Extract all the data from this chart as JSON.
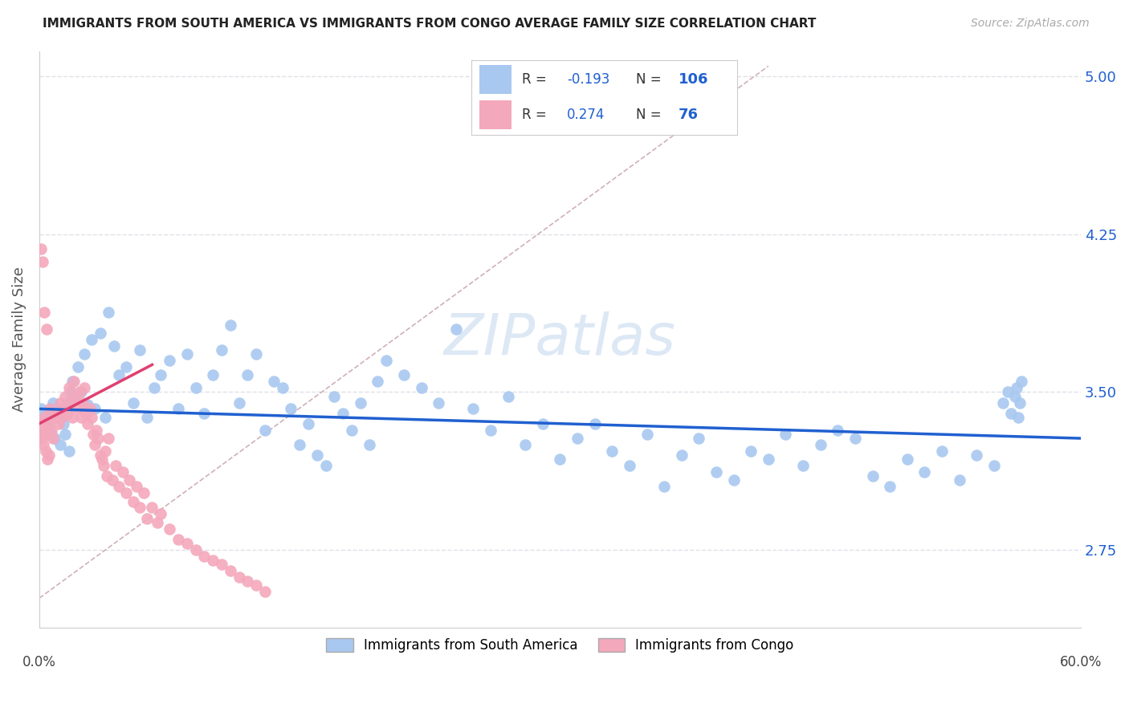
{
  "title": "IMMIGRANTS FROM SOUTH AMERICA VS IMMIGRANTS FROM CONGO AVERAGE FAMILY SIZE CORRELATION CHART",
  "source": "Source: ZipAtlas.com",
  "ylabel": "Average Family Size",
  "yticks": [
    2.75,
    3.5,
    4.25,
    5.0
  ],
  "xlim": [
    0.0,
    0.6
  ],
  "ylim": [
    2.38,
    5.12
  ],
  "legend1_label": "Immigrants from South America",
  "legend2_label": "Immigrants from Congo",
  "R1": "-0.193",
  "N1": "106",
  "R2": "0.274",
  "N2": "76",
  "color_sa": "#a8c8f0",
  "color_congo": "#f4a8bc",
  "trendline_sa": "#2060d0",
  "trendline_congo": "#e04070",
  "diag_color": "#d0b0b8",
  "grid_color": "#e0e0e8",
  "sa_x": [
    0.001,
    0.002,
    0.003,
    0.004,
    0.005,
    0.006,
    0.007,
    0.008,
    0.009,
    0.01,
    0.011,
    0.012,
    0.013,
    0.014,
    0.015,
    0.016,
    0.017,
    0.018,
    0.019,
    0.02,
    0.022,
    0.024,
    0.026,
    0.028,
    0.03,
    0.032,
    0.035,
    0.038,
    0.04,
    0.043,
    0.046,
    0.05,
    0.054,
    0.058,
    0.062,
    0.066,
    0.07,
    0.075,
    0.08,
    0.085,
    0.09,
    0.095,
    0.1,
    0.105,
    0.11,
    0.115,
    0.12,
    0.125,
    0.13,
    0.135,
    0.14,
    0.145,
    0.15,
    0.155,
    0.16,
    0.165,
    0.17,
    0.175,
    0.18,
    0.185,
    0.19,
    0.195,
    0.2,
    0.21,
    0.22,
    0.23,
    0.24,
    0.25,
    0.26,
    0.27,
    0.28,
    0.29,
    0.3,
    0.31,
    0.32,
    0.33,
    0.34,
    0.35,
    0.36,
    0.37,
    0.38,
    0.39,
    0.4,
    0.41,
    0.42,
    0.43,
    0.44,
    0.45,
    0.46,
    0.47,
    0.48,
    0.49,
    0.5,
    0.51,
    0.52,
    0.53,
    0.54,
    0.55,
    0.555,
    0.558,
    0.56,
    0.562,
    0.563,
    0.564,
    0.565,
    0.566
  ],
  "sa_y": [
    3.42,
    3.38,
    3.35,
    3.4,
    3.33,
    3.37,
    3.3,
    3.45,
    3.28,
    3.42,
    3.38,
    3.25,
    3.4,
    3.35,
    3.3,
    3.45,
    3.22,
    3.5,
    3.55,
    3.48,
    3.62,
    3.5,
    3.68,
    3.44,
    3.75,
    3.42,
    3.78,
    3.38,
    3.88,
    3.72,
    3.58,
    3.62,
    3.45,
    3.7,
    3.38,
    3.52,
    3.58,
    3.65,
    3.42,
    3.68,
    3.52,
    3.4,
    3.58,
    3.7,
    3.82,
    3.45,
    3.58,
    3.68,
    3.32,
    3.55,
    3.52,
    3.42,
    3.25,
    3.35,
    3.2,
    3.15,
    3.48,
    3.4,
    3.32,
    3.45,
    3.25,
    3.55,
    3.65,
    3.58,
    3.52,
    3.45,
    3.8,
    3.42,
    3.32,
    3.48,
    3.25,
    3.35,
    3.18,
    3.28,
    3.35,
    3.22,
    3.15,
    3.3,
    3.05,
    3.2,
    3.28,
    3.12,
    3.08,
    3.22,
    3.18,
    3.3,
    3.15,
    3.25,
    3.32,
    3.28,
    3.1,
    3.05,
    3.18,
    3.12,
    3.22,
    3.08,
    3.2,
    3.15,
    3.45,
    3.5,
    3.4,
    3.48,
    3.52,
    3.38,
    3.45,
    3.55
  ],
  "congo_x": [
    0.0005,
    0.001,
    0.0015,
    0.002,
    0.0025,
    0.003,
    0.0035,
    0.004,
    0.0045,
    0.005,
    0.0055,
    0.006,
    0.007,
    0.008,
    0.009,
    0.01,
    0.011,
    0.012,
    0.013,
    0.014,
    0.015,
    0.016,
    0.017,
    0.018,
    0.019,
    0.02,
    0.021,
    0.022,
    0.023,
    0.024,
    0.025,
    0.026,
    0.027,
    0.028,
    0.029,
    0.03,
    0.031,
    0.032,
    0.033,
    0.034,
    0.035,
    0.036,
    0.037,
    0.038,
    0.039,
    0.04,
    0.042,
    0.044,
    0.046,
    0.048,
    0.05,
    0.052,
    0.054,
    0.056,
    0.058,
    0.06,
    0.062,
    0.065,
    0.068,
    0.07,
    0.075,
    0.08,
    0.085,
    0.09,
    0.095,
    0.1,
    0.105,
    0.11,
    0.115,
    0.12,
    0.125,
    0.13,
    0.001,
    0.002,
    0.003,
    0.004
  ],
  "congo_y": [
    3.3,
    3.32,
    3.28,
    3.35,
    3.25,
    3.38,
    3.22,
    3.3,
    3.18,
    3.35,
    3.2,
    3.42,
    3.32,
    3.28,
    3.38,
    3.4,
    3.35,
    3.45,
    3.38,
    3.42,
    3.48,
    3.4,
    3.52,
    3.45,
    3.38,
    3.55,
    3.48,
    3.42,
    3.5,
    3.38,
    3.45,
    3.52,
    3.4,
    3.35,
    3.42,
    3.38,
    3.3,
    3.25,
    3.32,
    3.28,
    3.2,
    3.18,
    3.15,
    3.22,
    3.1,
    3.28,
    3.08,
    3.15,
    3.05,
    3.12,
    3.02,
    3.08,
    2.98,
    3.05,
    2.95,
    3.02,
    2.9,
    2.95,
    2.88,
    2.92,
    2.85,
    2.8,
    2.78,
    2.75,
    2.72,
    2.7,
    2.68,
    2.65,
    2.62,
    2.6,
    2.58,
    2.55,
    4.18,
    4.12,
    3.88,
    3.8
  ]
}
